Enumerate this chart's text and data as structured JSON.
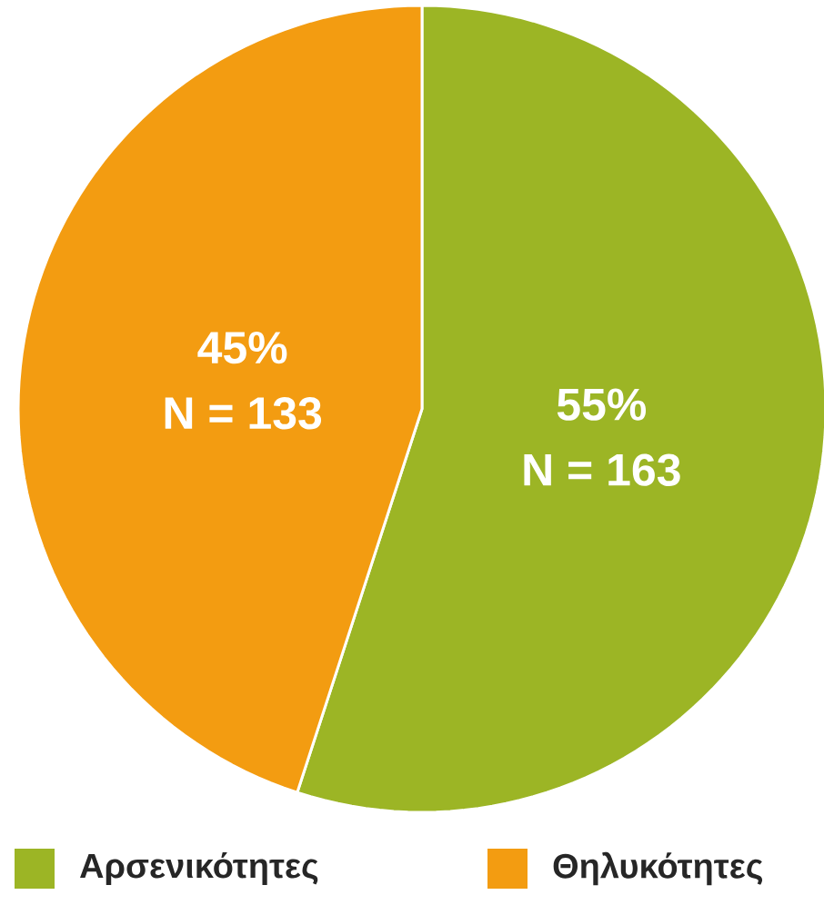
{
  "chart_data": {
    "type": "pie",
    "categories": [
      "Αρσενικότητες",
      "Θηλυκότητες"
    ],
    "values": [
      55,
      45
    ],
    "colors": [
      "#9cb525",
      "#f39c11"
    ],
    "value_labels": [
      "55%",
      "45%"
    ],
    "annotations": [
      "N = 163",
      "N = 133"
    ],
    "legend": "bottom"
  }
}
